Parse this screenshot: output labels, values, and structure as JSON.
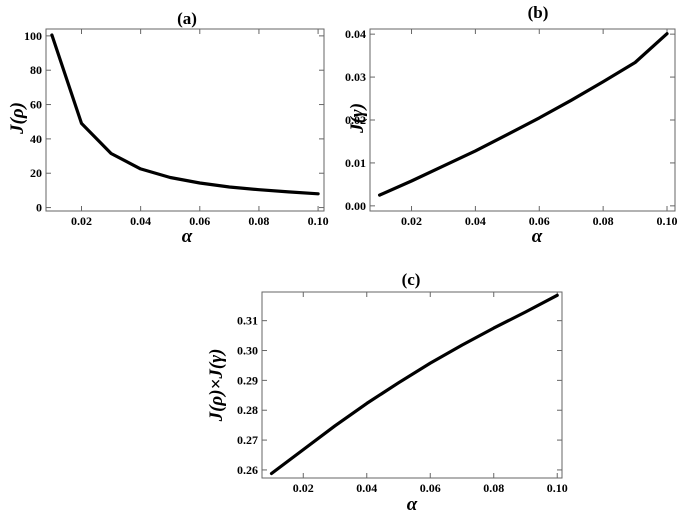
{
  "chart_data": [
    {
      "type": "line",
      "title": "(a)",
      "xlabel": "α",
      "ylabel": "J(ρ)",
      "xlim": [
        0.008,
        0.102
      ],
      "ylim": [
        -2,
        104
      ],
      "xticks": [
        0.02,
        0.04,
        0.06,
        0.08,
        0.1
      ],
      "xtick_labels": [
        "0.02",
        "0.04",
        "0.06",
        "0.08",
        "0.10"
      ],
      "yticks": [
        0,
        20,
        40,
        60,
        80,
        100
      ],
      "ytick_labels": [
        "0",
        "20",
        "40",
        "60",
        "80",
        "100"
      ],
      "series": [
        {
          "x": [
            0.01,
            0.02,
            0.03,
            0.04,
            0.05,
            0.06,
            0.07,
            0.08,
            0.09,
            0.1
          ],
          "y": [
            100.5,
            49,
            31.5,
            22.5,
            17.5,
            14.3,
            12,
            10.4,
            9.1,
            8
          ]
        }
      ],
      "grid": false
    },
    {
      "type": "line",
      "title": "(b)",
      "xlabel": "α",
      "ylabel": "J(γ)",
      "xlim": [
        0.007,
        0.1025
      ],
      "ylim": [
        -0.0012,
        0.0412
      ],
      "xticks": [
        0.02,
        0.04,
        0.06,
        0.08,
        0.1
      ],
      "xtick_labels": [
        "0.02",
        "0.04",
        "0.06",
        "0.08",
        "0.10"
      ],
      "yticks": [
        0,
        0.01,
        0.02,
        0.03,
        0.04
      ],
      "ytick_labels": [
        "0.00",
        "0.01",
        "0.02",
        "0.03",
        "0.04"
      ],
      "series": [
        {
          "x": [
            0.01,
            0.02,
            0.03,
            0.04,
            0.05,
            0.06,
            0.07,
            0.08,
            0.09,
            0.1
          ],
          "y": [
            0.0025,
            0.0058,
            0.0093,
            0.0128,
            0.0166,
            0.0205,
            0.0246,
            0.0289,
            0.0334,
            0.0401
          ]
        }
      ],
      "grid": false
    },
    {
      "type": "line",
      "title": "(c)",
      "xlabel": "α",
      "ylabel": "J(ρ)×J(γ)",
      "xlim": [
        0.007,
        0.1015
      ],
      "ylim": [
        0.2573,
        0.3196
      ],
      "xticks": [
        0.02,
        0.04,
        0.06,
        0.08,
        0.1
      ],
      "xtick_labels": [
        "0.02",
        "0.04",
        "0.06",
        "0.08",
        "0.10"
      ],
      "yticks": [
        0.26,
        0.27,
        0.28,
        0.29,
        0.3,
        0.31
      ],
      "ytick_labels": [
        "0.26",
        "0.27",
        "0.28",
        "0.29",
        "0.30",
        "0.31"
      ],
      "series": [
        {
          "x": [
            0.01,
            0.02,
            0.03,
            0.04,
            0.05,
            0.06,
            0.07,
            0.08,
            0.09,
            0.1
          ],
          "y": [
            0.2588,
            0.2668,
            0.2748,
            0.2823,
            0.2892,
            0.2958,
            0.3018,
            0.3075,
            0.3129,
            0.3185
          ]
        }
      ],
      "grid": false
    }
  ]
}
